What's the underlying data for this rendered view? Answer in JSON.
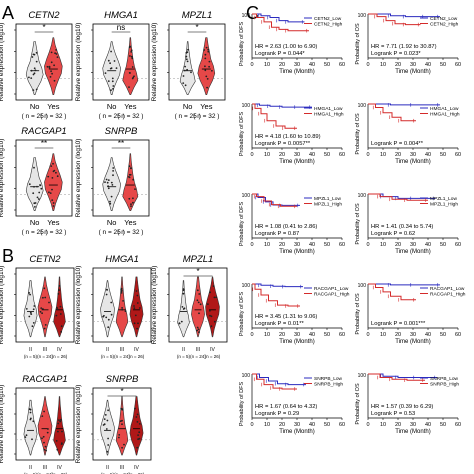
{
  "panel_letters": {
    "a": "A",
    "b": "B",
    "c": "C"
  },
  "colors": {
    "low": "#2b2bbf",
    "high": "#d42a2a",
    "violin_grey": "#e6e6e6",
    "violin_red": "#e64848",
    "dark_red": "#b01818"
  },
  "chart_data": [
    {
      "type": "violin",
      "panel": "A",
      "ylabel": "Relative expression (log10)",
      "groups": [
        {
          "label": "No",
          "n": "( n = 25 )"
        },
        {
          "label": "Yes",
          "n": "( n = 32 )"
        }
      ],
      "genes": [
        {
          "name": "CETN2",
          "sig": "*"
        },
        {
          "name": "HMGA1",
          "sig": "ns"
        },
        {
          "name": "MPZL1",
          "sig": "*"
        },
        {
          "name": "RACGAP1",
          "sig": "**"
        },
        {
          "name": "SNRPB",
          "sig": "**"
        }
      ]
    },
    {
      "type": "violin",
      "panel": "B",
      "ylabel": "Relative expression (log10)",
      "groups": [
        {
          "label": "II",
          "n": "(n = 5)"
        },
        {
          "label": "III",
          "n": "(n = 24)"
        },
        {
          "label": "IV",
          "n": "(n = 26)"
        }
      ],
      "genes": [
        {
          "name": "CETN2",
          "sig": ""
        },
        {
          "name": "HMGA1",
          "sig": ""
        },
        {
          "name": "MPZL1",
          "sig": "*"
        },
        {
          "name": "RACGAP1",
          "sig": ""
        },
        {
          "name": "SNRPB",
          "sig": "*"
        }
      ]
    },
    {
      "type": "line",
      "panel": "C",
      "xlabel": "Time (Month)",
      "x_ticks": [
        0,
        10,
        20,
        30,
        40,
        50,
        60
      ],
      "xlim": [
        0,
        60
      ],
      "ylim": [
        0,
        100
      ],
      "y_ticks_top": "100",
      "rows": [
        {
          "gene": "CETN2",
          "legend": [
            "CETN2_Low",
            "CETN2_High"
          ],
          "dfs": {
            "ylabel": "Probability of DFS",
            "hr": "HR = 2.63 (1.00 to 6.90)",
            "p": "Logrank P = 0.044*",
            "low": [
              [
                0,
                100
              ],
              [
                6,
                96
              ],
              [
                12,
                92
              ],
              [
                18,
                85
              ],
              [
                24,
                82
              ],
              [
                35,
                82
              ]
            ],
            "high": [
              [
                0,
                100
              ],
              [
                3,
                92
              ],
              [
                8,
                82
              ],
              [
                13,
                70
              ],
              [
                18,
                65
              ],
              [
                24,
                62
              ],
              [
                38,
                62
              ]
            ]
          },
          "os": {
            "ylabel": "Probability of OS",
            "hr": "HR = 7.71 (1.92 to 30.87)",
            "p": "Logrank P = 0.023*",
            "low": [
              [
                0,
                100
              ],
              [
                15,
                96
              ],
              [
                25,
                94
              ],
              [
                38,
                94
              ],
              [
                48,
                94
              ]
            ],
            "high": [
              [
                0,
                100
              ],
              [
                6,
                94
              ],
              [
                12,
                85
              ],
              [
                18,
                78
              ],
              [
                25,
                76
              ],
              [
                35,
                76
              ]
            ]
          }
        },
        {
          "gene": "HMGA1",
          "legend": [
            "HMGA1_Low",
            "HMGA1_High"
          ],
          "dfs": {
            "ylabel": "Probability of DFS",
            "hr": "HR = 4.18 (1.60 to 10.89)",
            "p": "Logrank P = 0.0057**",
            "low": [
              [
                0,
                100
              ],
              [
                5,
                97
              ],
              [
                12,
                95
              ],
              [
                20,
                93
              ],
              [
                30,
                93
              ],
              [
                40,
                93
              ]
            ],
            "high": [
              [
                0,
                100
              ],
              [
                2,
                90
              ],
              [
                6,
                78
              ],
              [
                10,
                62
              ],
              [
                16,
                50
              ],
              [
                22,
                45
              ],
              [
                30,
                45
              ]
            ]
          },
          "os": {
            "ylabel": "Probability of OS",
            "hr": "",
            "p": "Logrank P = 0.004**",
            "low": [
              [
                0,
                100
              ],
              [
                15,
                98
              ],
              [
                30,
                98
              ],
              [
                48,
                98
              ]
            ],
            "high": [
              [
                0,
                100
              ],
              [
                5,
                92
              ],
              [
                10,
                80
              ],
              [
                16,
                70
              ],
              [
                22,
                62
              ],
              [
                32,
                62
              ]
            ]
          }
        },
        {
          "gene": "MPZL1",
          "legend": [
            "MPZL1_Low",
            "MPZL1_High"
          ],
          "dfs": {
            "ylabel": "Probability of DFS",
            "hr": "HR = 1.08 (0.41 to 2.86)",
            "p": "Logrank P = 0.87",
            "low": [
              [
                0,
                100
              ],
              [
                4,
                92
              ],
              [
                9,
                82
              ],
              [
                14,
                75
              ],
              [
                20,
                74
              ],
              [
                32,
                74
              ]
            ],
            "high": [
              [
                0,
                100
              ],
              [
                3,
                94
              ],
              [
                8,
                84
              ],
              [
                13,
                76
              ],
              [
                19,
                72
              ],
              [
                30,
                72
              ]
            ]
          },
          "os": {
            "ylabel": "Probability of OS",
            "hr": "HR = 1.41 (0.34 to 5.74)",
            "p": "Logrank P = 0.62",
            "low": [
              [
                0,
                100
              ],
              [
                10,
                94
              ],
              [
                20,
                90
              ],
              [
                30,
                90
              ],
              [
                45,
                90
              ]
            ],
            "high": [
              [
                0,
                100
              ],
              [
                8,
                94
              ],
              [
                16,
                88
              ],
              [
                26,
                86
              ],
              [
                40,
                86
              ]
            ]
          }
        },
        {
          "gene": "RACGAP1",
          "legend": [
            "RACGAP1_Low",
            "RACGAP1_High"
          ],
          "dfs": {
            "ylabel": "Probability of DFS",
            "hr": "HR = 3.45 (1.31 to 9.06)",
            "p": "Logrank P = 0.01**",
            "low": [
              [
                0,
                100
              ],
              [
                6,
                97
              ],
              [
                14,
                95
              ],
              [
                22,
                94
              ],
              [
                34,
                94
              ]
            ],
            "high": [
              [
                0,
                100
              ],
              [
                2,
                88
              ],
              [
                6,
                75
              ],
              [
                11,
                62
              ],
              [
                17,
                52
              ],
              [
                24,
                50
              ],
              [
                32,
                50
              ]
            ]
          },
          "os": {
            "ylabel": "Probability of OS",
            "hr": "",
            "p": "Logrank P = 0.001***",
            "low": [
              [
                0,
                100
              ],
              [
                15,
                98
              ],
              [
                30,
                98
              ],
              [
                48,
                98
              ]
            ],
            "high": [
              [
                0,
                100
              ],
              [
                5,
                92
              ],
              [
                10,
                82
              ],
              [
                15,
                72
              ],
              [
                22,
                64
              ],
              [
                32,
                64
              ]
            ]
          }
        },
        {
          "gene": "SNRPB",
          "legend": [
            "SNRPB_Low",
            "SNRPB_High"
          ],
          "dfs": {
            "ylabel": "Probability of DFS",
            "hr": "HR = 1.67 (0.64 to 4.32)",
            "p": "Logrank P = 0.29",
            "low": [
              [
                0,
                100
              ],
              [
                5,
                92
              ],
              [
                11,
                84
              ],
              [
                17,
                78
              ],
              [
                24,
                76
              ],
              [
                36,
                76
              ]
            ],
            "high": [
              [
                0,
                100
              ],
              [
                3,
                88
              ],
              [
                8,
                76
              ],
              [
                14,
                68
              ],
              [
                20,
                66
              ],
              [
                30,
                66
              ]
            ]
          },
          "os": {
            "ylabel": "Probability of OS",
            "hr": "HR = 1.57 (0.39 to 6.29)",
            "p": "Logrank P = 0.53",
            "low": [
              [
                0,
                100
              ],
              [
                10,
                95
              ],
              [
                20,
                92
              ],
              [
                32,
                92
              ],
              [
                46,
                92
              ]
            ],
            "high": [
              [
                0,
                100
              ],
              [
                8,
                92
              ],
              [
                16,
                88
              ],
              [
                26,
                86
              ],
              [
                38,
                86
              ]
            ]
          }
        }
      ]
    }
  ]
}
